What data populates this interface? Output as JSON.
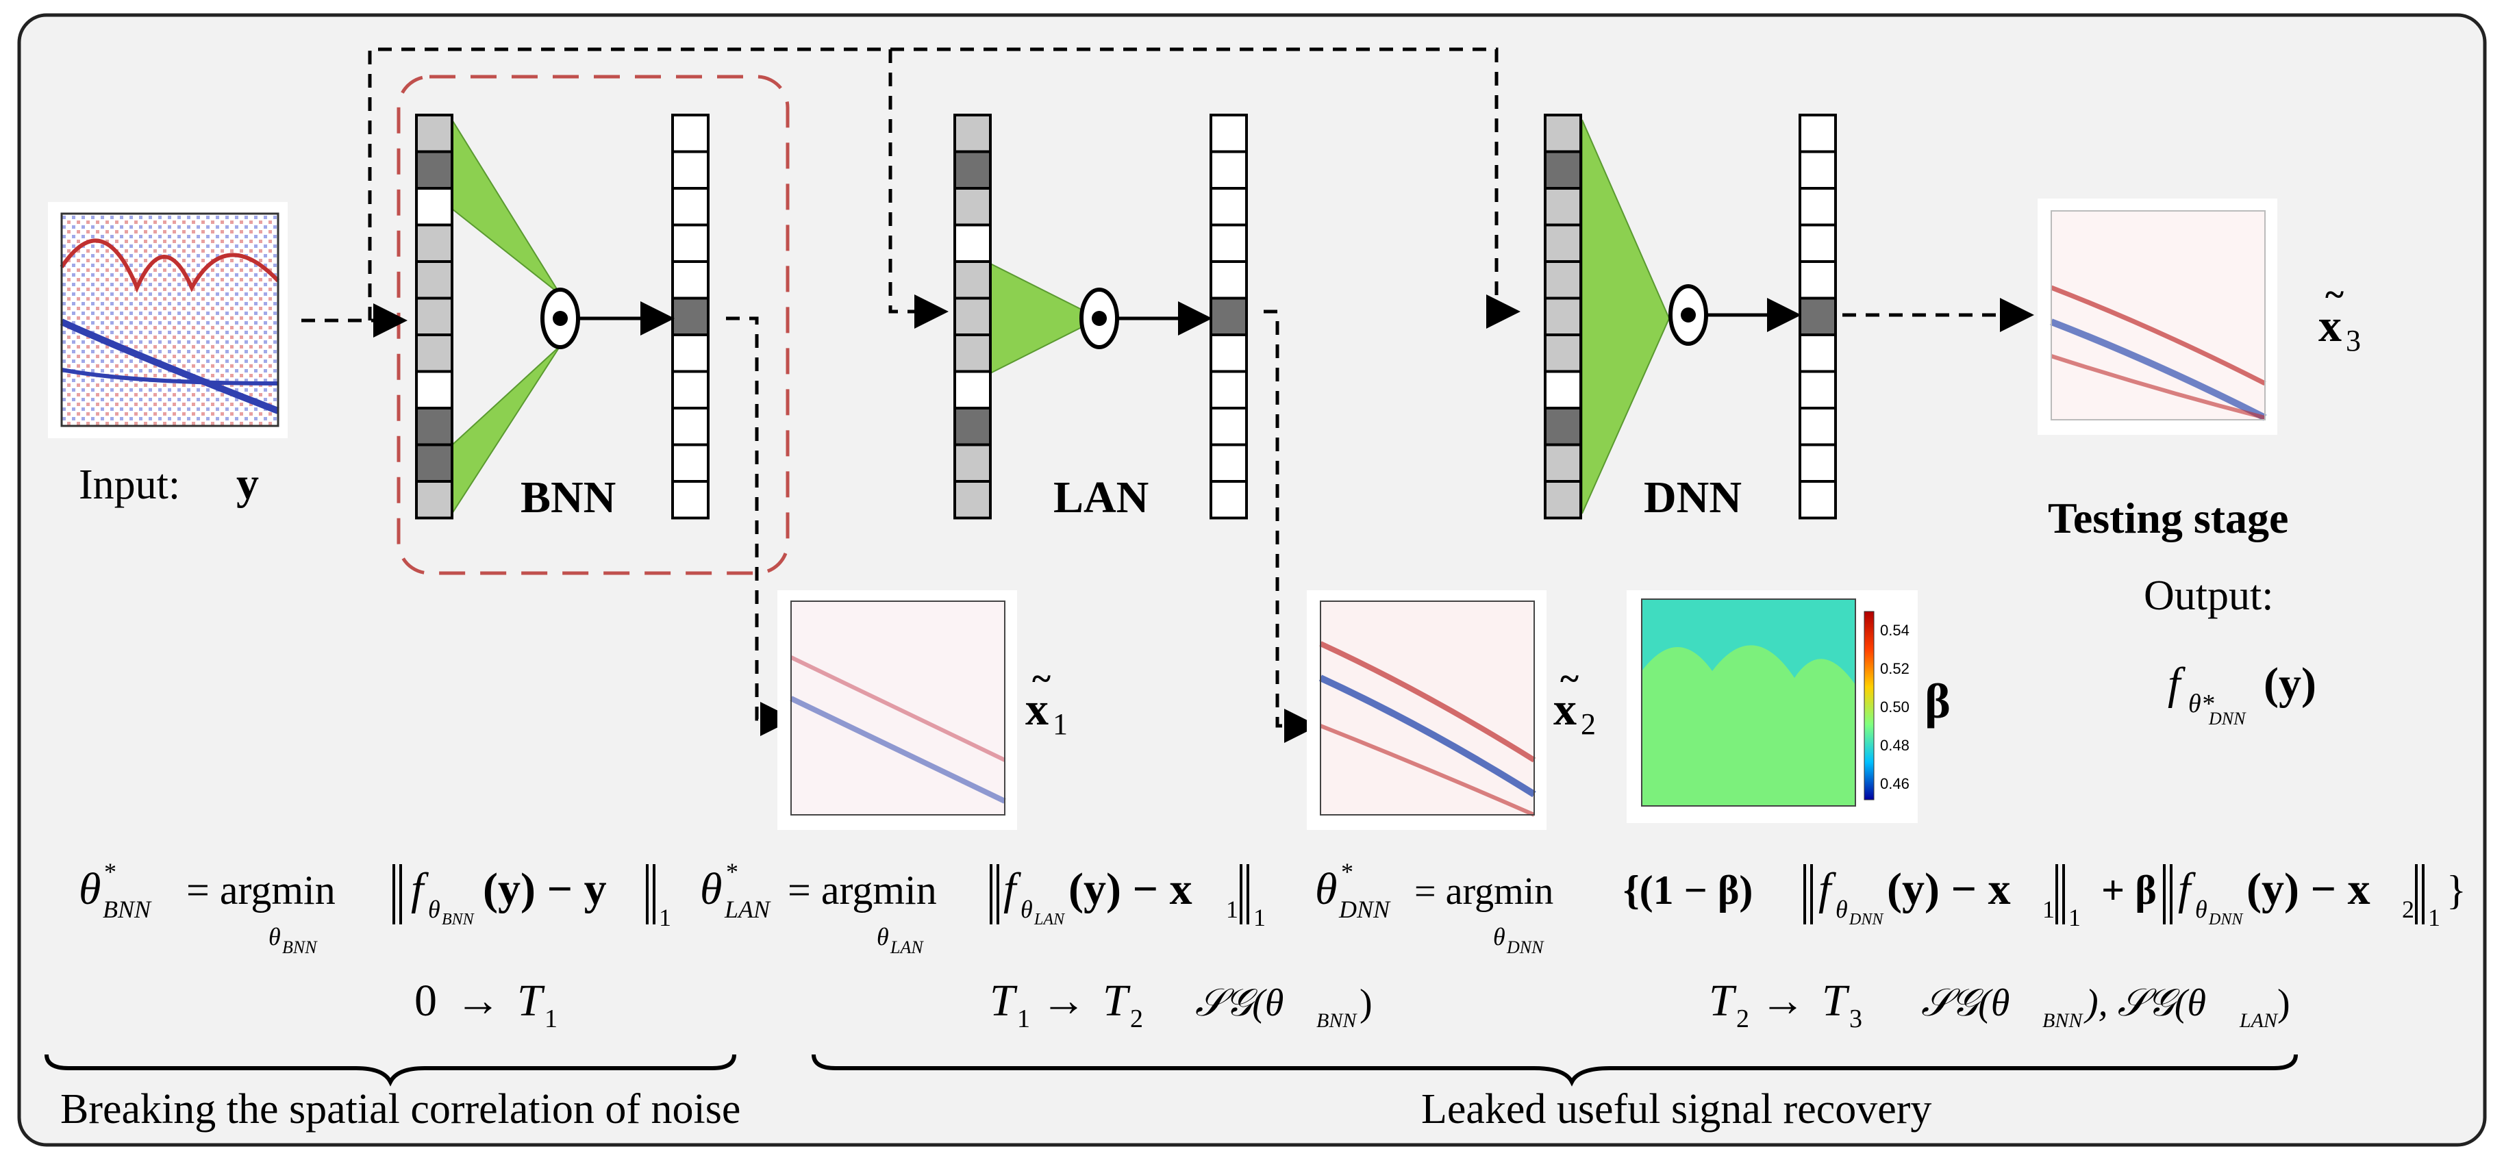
{
  "input": {
    "label": "Input:",
    "symbol": "y"
  },
  "networks": {
    "bnn": "BNN",
    "lan": "LAN",
    "dnn": "DNN"
  },
  "images": {
    "x1": {
      "symbol": "x",
      "subscript": "1"
    },
    "x2": {
      "symbol": "x",
      "subscript": "2"
    },
    "x3": {
      "symbol": "x",
      "subscript": "3"
    },
    "beta": {
      "symbol": "β"
    }
  },
  "colorbar": {
    "ticks": [
      "0.54",
      "0.52",
      "0.50",
      "0.48",
      "0.46"
    ]
  },
  "testing": {
    "title": "Testing stage",
    "output_label": "Output:",
    "formula_f": "f",
    "formula_sub": "θ*",
    "formula_subsub": "DNN",
    "formula_arg": "(y)"
  },
  "equations": {
    "bnn": {
      "theta": "θ",
      "star": "*",
      "sub": "BNN",
      "eq": "= argmin",
      "under": "θ",
      "under_sub": "BNN",
      "body": "f",
      "body_sub": "θ",
      "body_subsub": "BNN",
      "rest": "(y) − y",
      "norm_sub": "1"
    },
    "lan": {
      "theta": "θ",
      "star": "*",
      "sub": "LAN",
      "eq": "= argmin",
      "under": "θ",
      "under_sub": "LAN",
      "body": "f",
      "body_sub": "θ",
      "body_subsub": "LAN",
      "rest": "(y) − x",
      "rest_sub": "1",
      "norm_sub": "1"
    },
    "dnn": {
      "theta": "θ",
      "star": "*",
      "sub": "DNN",
      "eq": "= argmin",
      "under": "θ",
      "under_sub": "DNN",
      "part1": "{(1 − β)",
      "part2": "+ β",
      "f": "f",
      "f_sub": "θ",
      "f_subsub": "DNN",
      "rest1": "(y) − x",
      "rest1_sub": "1",
      "rest2": "(y) − x",
      "rest2_sub": "2",
      "norm_sub": "1",
      "close": "}"
    }
  },
  "stages": {
    "s1": {
      "from": "0",
      "arrow": "→",
      "to": "T",
      "to_sub": "1"
    },
    "s2": {
      "from": "T",
      "from_sub": "1",
      "arrow": "→",
      "to": "T",
      "to_sub": "2",
      "sg": "𝒮𝒢(θ",
      "sg_sub": "BNN",
      "sg_close": ")"
    },
    "s3": {
      "from": "T",
      "from_sub": "2",
      "arrow": "→",
      "to": "T",
      "to_sub": "3",
      "sg": "𝒮𝒢(θ",
      "sg_sub": "BNN",
      "sg_mid": "), 𝒮𝒢(θ",
      "sg_sub2": "LAN",
      "sg_close": ")"
    }
  },
  "phases": {
    "left": "Breaking the spatial correlation of noise",
    "right": "Leaked useful signal recovery"
  }
}
